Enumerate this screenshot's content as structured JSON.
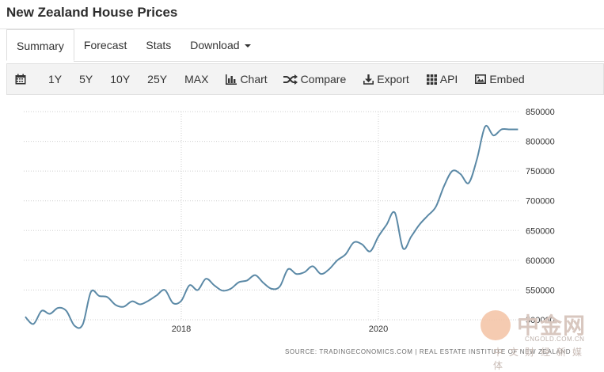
{
  "page": {
    "title": "New Zealand House Prices"
  },
  "tabs": [
    {
      "label": "Summary",
      "active": true
    },
    {
      "label": "Forecast",
      "active": false
    },
    {
      "label": "Stats",
      "active": false
    },
    {
      "label": "Download",
      "active": false
    }
  ],
  "toolbar": {
    "calendar_icon": "calendar-icon",
    "range_1y": "1Y",
    "range_5y": "5Y",
    "range_10y": "10Y",
    "range_25y": "25Y",
    "range_max": "MAX",
    "chart_label": "Chart",
    "compare_label": "Compare",
    "export_label": "Export",
    "api_label": "API",
    "embed_label": "Embed"
  },
  "chart_data": {
    "type": "line",
    "title": "",
    "xlabel": "",
    "ylabel": "",
    "x_ticks": [
      "2018",
      "2020"
    ],
    "y_ticks": [
      "850000",
      "800000",
      "750000",
      "700000",
      "650000",
      "600000",
      "550000",
      "500000"
    ],
    "ylim": [
      500000,
      850000
    ],
    "grid": true,
    "series": [
      {
        "color": "#5b89a6",
        "x": [
          "2016-06",
          "2016-07",
          "2016-08",
          "2016-09",
          "2016-10",
          "2016-11",
          "2016-12",
          "2017-01",
          "2017-02",
          "2017-03",
          "2017-04",
          "2017-05",
          "2017-06",
          "2017-07",
          "2017-08",
          "2017-09",
          "2017-10",
          "2017-11",
          "2017-12",
          "2018-01",
          "2018-02",
          "2018-03",
          "2018-04",
          "2018-05",
          "2018-06",
          "2018-07",
          "2018-08",
          "2018-09",
          "2018-10",
          "2018-11",
          "2018-12",
          "2019-01",
          "2019-02",
          "2019-03",
          "2019-04",
          "2019-05",
          "2019-06",
          "2019-07",
          "2019-08",
          "2019-09",
          "2019-10",
          "2019-11",
          "2019-12",
          "2020-01",
          "2020-02",
          "2020-03",
          "2020-04",
          "2020-05",
          "2020-06",
          "2020-07",
          "2020-08",
          "2020-09",
          "2020-10",
          "2020-11",
          "2020-12",
          "2021-01",
          "2021-02",
          "2021-03",
          "2021-04",
          "2021-05",
          "2021-06"
        ],
        "values": [
          505000,
          493000,
          515000,
          510000,
          520000,
          515000,
          490000,
          492000,
          547000,
          540000,
          538000,
          525000,
          522000,
          531000,
          526000,
          532000,
          541000,
          550000,
          528000,
          532000,
          558000,
          550000,
          569000,
          558000,
          549000,
          552000,
          563000,
          566000,
          575000,
          562000,
          552000,
          556000,
          585000,
          577000,
          580000,
          590000,
          577000,
          585000,
          600000,
          610000,
          630000,
          627000,
          615000,
          640000,
          660000,
          680000,
          620000,
          640000,
          660000,
          675000,
          690000,
          725000,
          750000,
          745000,
          730000,
          770000,
          825000,
          810000,
          820000,
          820000,
          820000
        ]
      }
    ]
  },
  "source_text": "SOURCE: TRADINGECONOMICS.COM  |  REAL ESTATE INSTITUTE OF NEW ZEALAND",
  "watermark": {
    "main": "中金网",
    "domain": "CNGOLD.COM.CN",
    "sub": "中文财经新媒体"
  }
}
